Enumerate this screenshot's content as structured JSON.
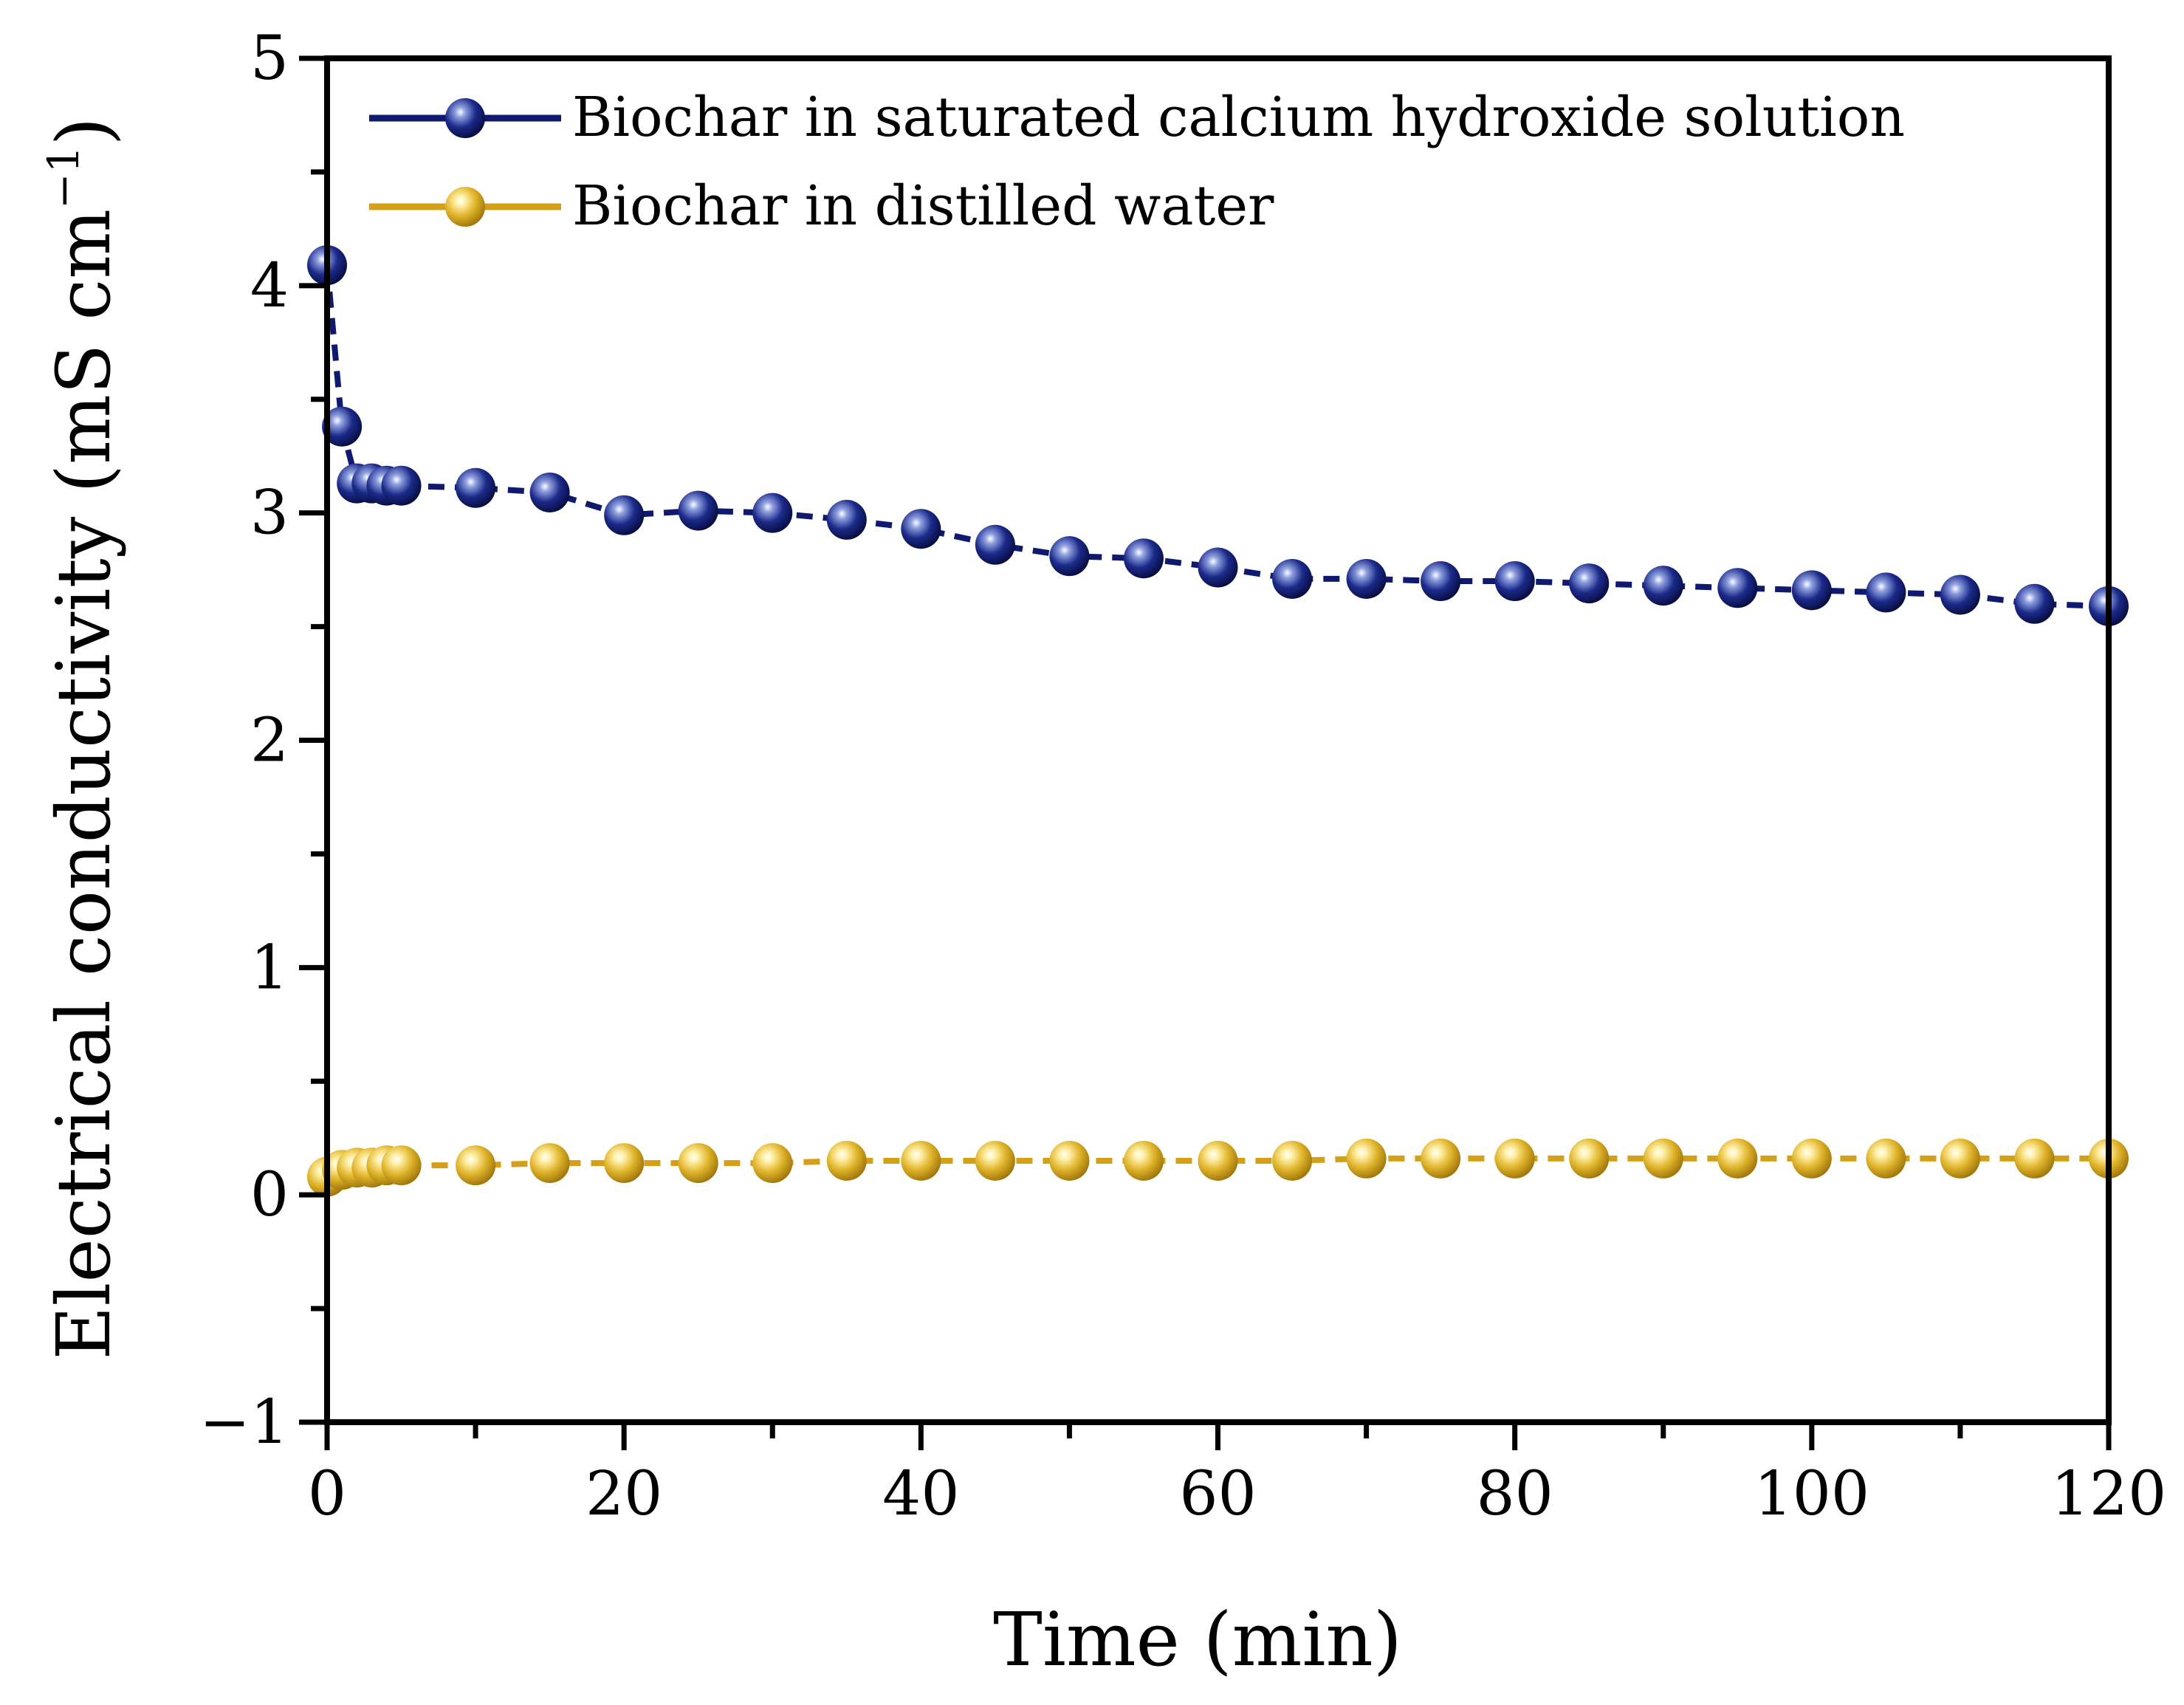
{
  "chart_data": {
    "type": "line",
    "title": "",
    "xlabel": "Time (min)",
    "ylabel_main": "Electrical conductivity (mS cm",
    "ylabel_sup": "−1",
    "ylabel_close": ")",
    "xlim": [
      0,
      120
    ],
    "ylim": [
      -1,
      5
    ],
    "xticks": [
      0,
      20,
      40,
      60,
      80,
      100,
      120
    ],
    "xtick_labels": [
      "0",
      "20",
      "40",
      "60",
      "80",
      "100",
      "120"
    ],
    "yticks": [
      -1,
      0,
      1,
      2,
      3,
      4,
      5
    ],
    "ytick_labels": [
      "−1",
      "0",
      "1",
      "2",
      "3",
      "4",
      "5"
    ],
    "grid": false,
    "legend_position": "top-left",
    "series": [
      {
        "name": "Biochar in saturated calcium hydroxide solution",
        "color": "#0f1a6e",
        "x": [
          0,
          1,
          2,
          3,
          4,
          5,
          10,
          15,
          20,
          25,
          30,
          35,
          40,
          45,
          50,
          55,
          60,
          65,
          70,
          75,
          80,
          85,
          90,
          95,
          100,
          105,
          110,
          115,
          120
        ],
        "y": [
          4.09,
          3.38,
          3.13,
          3.13,
          3.12,
          3.12,
          3.11,
          3.09,
          2.99,
          3.01,
          3.0,
          2.97,
          2.93,
          2.86,
          2.81,
          2.8,
          2.76,
          2.71,
          2.71,
          2.7,
          2.7,
          2.69,
          2.68,
          2.67,
          2.66,
          2.65,
          2.64,
          2.6,
          2.59
        ]
      },
      {
        "name": "Biochar in distilled water",
        "color": "#d4a017",
        "x": [
          0,
          1,
          2,
          3,
          4,
          5,
          10,
          15,
          20,
          25,
          30,
          35,
          40,
          45,
          50,
          55,
          60,
          65,
          70,
          75,
          80,
          85,
          90,
          95,
          100,
          105,
          110,
          115,
          120
        ],
        "y": [
          0.08,
          0.11,
          0.12,
          0.12,
          0.13,
          0.13,
          0.13,
          0.14,
          0.14,
          0.14,
          0.14,
          0.15,
          0.15,
          0.15,
          0.15,
          0.15,
          0.15,
          0.15,
          0.16,
          0.16,
          0.16,
          0.16,
          0.16,
          0.16,
          0.16,
          0.16,
          0.16,
          0.16,
          0.16
        ]
      }
    ]
  }
}
